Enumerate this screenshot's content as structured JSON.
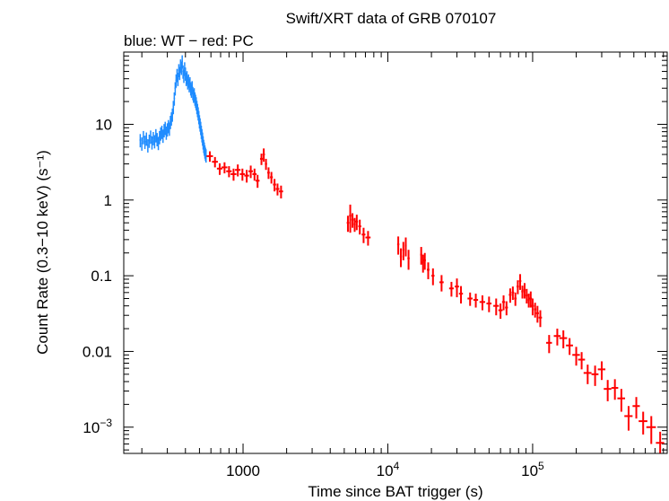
{
  "chart_data": {
    "type": "scatter",
    "title": "Swift/XRT data of GRB 070107",
    "subtitle": "blue: WT − red: PC",
    "xlabel": "Time since BAT trigger (s)",
    "ylabel": "Count Rate (0.3−10 keV) (s⁻¹)",
    "x_scale": "log",
    "y_scale": "log",
    "xlim": [
      150,
      850000
    ],
    "ylim": [
      0.00045,
      90
    ],
    "x_ticks": [
      {
        "value": 1000,
        "base": "1000",
        "exp": ""
      },
      {
        "value": 10000,
        "base": "10",
        "exp": "4"
      },
      {
        "value": 100000,
        "base": "10",
        "exp": "5"
      }
    ],
    "y_ticks": [
      {
        "value": 10,
        "base": "10",
        "exp": ""
      },
      {
        "value": 1,
        "base": "1",
        "exp": ""
      },
      {
        "value": 0.1,
        "base": "0.1",
        "exp": ""
      },
      {
        "value": 0.01,
        "base": "0.01",
        "exp": ""
      },
      {
        "value": 0.001,
        "base": "10",
        "exp": "−3"
      }
    ],
    "series": [
      {
        "name": "WT",
        "color": "#1f8cff",
        "points": [
          [
            195,
            6.2
          ],
          [
            200,
            5.6
          ],
          [
            205,
            6.8
          ],
          [
            210,
            5.9
          ],
          [
            215,
            6.5
          ],
          [
            220,
            5.3
          ],
          [
            225,
            6.1
          ],
          [
            230,
            6.9
          ],
          [
            235,
            5.8
          ],
          [
            240,
            6.6
          ],
          [
            245,
            6.0
          ],
          [
            250,
            7.2
          ],
          [
            255,
            6.4
          ],
          [
            260,
            5.7
          ],
          [
            265,
            6.8
          ],
          [
            270,
            7.6
          ],
          [
            275,
            8.0
          ],
          [
            280,
            7.1
          ],
          [
            285,
            8.4
          ],
          [
            290,
            9.0
          ],
          [
            295,
            7.8
          ],
          [
            300,
            8.6
          ],
          [
            305,
            9.5
          ],
          [
            310,
            8.8
          ],
          [
            315,
            10.8
          ],
          [
            320,
            12.0
          ],
          [
            325,
            13.5
          ],
          [
            330,
            17.0
          ],
          [
            335,
            22.0
          ],
          [
            340,
            30.0
          ],
          [
            345,
            38.0
          ],
          [
            350,
            45.0
          ],
          [
            355,
            40.0
          ],
          [
            360,
            52.0
          ],
          [
            365,
            48.0
          ],
          [
            370,
            60.0
          ],
          [
            375,
            56.0
          ],
          [
            380,
            68.0
          ],
          [
            385,
            50.0
          ],
          [
            390,
            44.0
          ],
          [
            395,
            55.0
          ],
          [
            400,
            47.0
          ],
          [
            405,
            40.0
          ],
          [
            410,
            42.0
          ],
          [
            415,
            36.0
          ],
          [
            420,
            38.0
          ],
          [
            425,
            33.0
          ],
          [
            430,
            35.0
          ],
          [
            435,
            30.0
          ],
          [
            440,
            28.0
          ],
          [
            445,
            31.0
          ],
          [
            450,
            26.0
          ],
          [
            455,
            24.0
          ],
          [
            460,
            25.0
          ],
          [
            465,
            22.0
          ],
          [
            470,
            20.5
          ],
          [
            475,
            19.0
          ],
          [
            480,
            17.0
          ],
          [
            485,
            15.5
          ],
          [
            490,
            14.0
          ],
          [
            495,
            12.5
          ],
          [
            500,
            11.0
          ],
          [
            505,
            10.0
          ],
          [
            510,
            9.0
          ],
          [
            515,
            8.0
          ],
          [
            520,
            7.2
          ],
          [
            525,
            6.5
          ],
          [
            530,
            5.8
          ],
          [
            535,
            5.2
          ],
          [
            540,
            4.8
          ],
          [
            545,
            4.4
          ],
          [
            550,
            4.1
          ],
          [
            555,
            3.9
          ]
        ]
      },
      {
        "name": "PC",
        "color": "#ff0000",
        "points": [
          [
            590,
            3.8,
            30,
            0.6
          ],
          [
            640,
            3.2,
            30,
            0.5
          ],
          [
            690,
            2.6,
            30,
            0.45
          ],
          [
            745,
            2.7,
            35,
            0.45
          ],
          [
            800,
            2.4,
            35,
            0.4
          ],
          [
            860,
            2.2,
            40,
            0.4
          ],
          [
            920,
            2.5,
            40,
            0.45
          ],
          [
            990,
            2.2,
            40,
            0.4
          ],
          [
            1060,
            2.1,
            40,
            0.4
          ],
          [
            1130,
            2.4,
            40,
            0.45
          ],
          [
            1200,
            2.2,
            40,
            0.4
          ],
          [
            1260,
            1.8,
            40,
            0.35
          ],
          [
            1340,
            3.5,
            30,
            0.6
          ],
          [
            1390,
            4.0,
            25,
            0.8
          ],
          [
            1440,
            3.0,
            25,
            0.5
          ],
          [
            1500,
            2.3,
            30,
            0.4
          ],
          [
            1570,
            2.0,
            35,
            0.35
          ],
          [
            1650,
            1.6,
            40,
            0.3
          ],
          [
            1730,
            1.4,
            50,
            0.25
          ],
          [
            1830,
            1.3,
            60,
            0.25
          ],
          [
            5300,
            0.5,
            100,
            0.12
          ],
          [
            5500,
            0.62,
            100,
            0.25
          ],
          [
            5700,
            0.55,
            100,
            0.12
          ],
          [
            5900,
            0.48,
            100,
            0.1
          ],
          [
            6100,
            0.52,
            120,
            0.12
          ],
          [
            6400,
            0.45,
            150,
            0.1
          ],
          [
            6800,
            0.35,
            200,
            0.08
          ],
          [
            7300,
            0.32,
            300,
            0.07
          ],
          [
            11800,
            0.26,
            200,
            0.07
          ],
          [
            12300,
            0.18,
            200,
            0.05
          ],
          [
            12800,
            0.22,
            200,
            0.06
          ],
          [
            13300,
            0.25,
            200,
            0.07
          ],
          [
            13900,
            0.17,
            250,
            0.05
          ],
          [
            17000,
            0.19,
            250,
            0.05
          ],
          [
            17500,
            0.15,
            250,
            0.04
          ],
          [
            18000,
            0.16,
            300,
            0.04
          ],
          [
            19000,
            0.12,
            400,
            0.03
          ],
          [
            20500,
            0.1,
            500,
            0.025
          ],
          [
            23500,
            0.082,
            800,
            0.02
          ],
          [
            27500,
            0.068,
            1000,
            0.015
          ],
          [
            30000,
            0.072,
            1000,
            0.02
          ],
          [
            32000,
            0.058,
            1000,
            0.015
          ],
          [
            37000,
            0.05,
            1500,
            0.01
          ],
          [
            40500,
            0.048,
            1500,
            0.01
          ],
          [
            45000,
            0.045,
            2000,
            0.01
          ],
          [
            50000,
            0.043,
            2000,
            0.01
          ],
          [
            56000,
            0.04,
            2500,
            0.01
          ],
          [
            60000,
            0.035,
            2000,
            0.008
          ],
          [
            63000,
            0.045,
            1500,
            0.01
          ],
          [
            66000,
            0.038,
            1500,
            0.008
          ],
          [
            70000,
            0.056,
            1500,
            0.012
          ],
          [
            73000,
            0.06,
            1500,
            0.012
          ],
          [
            76000,
            0.05,
            1500,
            0.01
          ],
          [
            79000,
            0.072,
            1500,
            0.015
          ],
          [
            82000,
            0.085,
            1500,
            0.02
          ],
          [
            85000,
            0.062,
            1500,
            0.012
          ],
          [
            88000,
            0.065,
            1500,
            0.015
          ],
          [
            91000,
            0.055,
            1500,
            0.012
          ],
          [
            94000,
            0.048,
            1500,
            0.01
          ],
          [
            97000,
            0.05,
            2000,
            0.012
          ],
          [
            100000,
            0.04,
            2000,
            0.01
          ],
          [
            104000,
            0.036,
            2000,
            0.008
          ],
          [
            108000,
            0.032,
            2500,
            0.008
          ],
          [
            113000,
            0.028,
            3000,
            0.007
          ],
          [
            130000,
            0.013,
            6000,
            0.0035
          ],
          [
            148000,
            0.016,
            8000,
            0.004
          ],
          [
            163000,
            0.015,
            10000,
            0.004
          ],
          [
            180000,
            0.012,
            10000,
            0.003
          ],
          [
            200000,
            0.009,
            12000,
            0.0025
          ],
          [
            218000,
            0.0078,
            12000,
            0.002
          ],
          [
            240000,
            0.0052,
            15000,
            0.0015
          ],
          [
            270000,
            0.005,
            15000,
            0.0015
          ],
          [
            300000,
            0.0058,
            18000,
            0.0016
          ],
          [
            330000,
            0.0032,
            20000,
            0.001
          ],
          [
            370000,
            0.0033,
            20000,
            0.001
          ],
          [
            410000,
            0.0024,
            25000,
            0.0008
          ],
          [
            460000,
            0.0014,
            30000,
            0.0005
          ],
          [
            520000,
            0.0019,
            30000,
            0.0006
          ],
          [
            580000,
            0.0012,
            40000,
            0.0004
          ],
          [
            660000,
            0.001,
            50000,
            0.0004
          ],
          [
            760000,
            0.00062,
            50000,
            0.00025
          ]
        ]
      }
    ]
  }
}
